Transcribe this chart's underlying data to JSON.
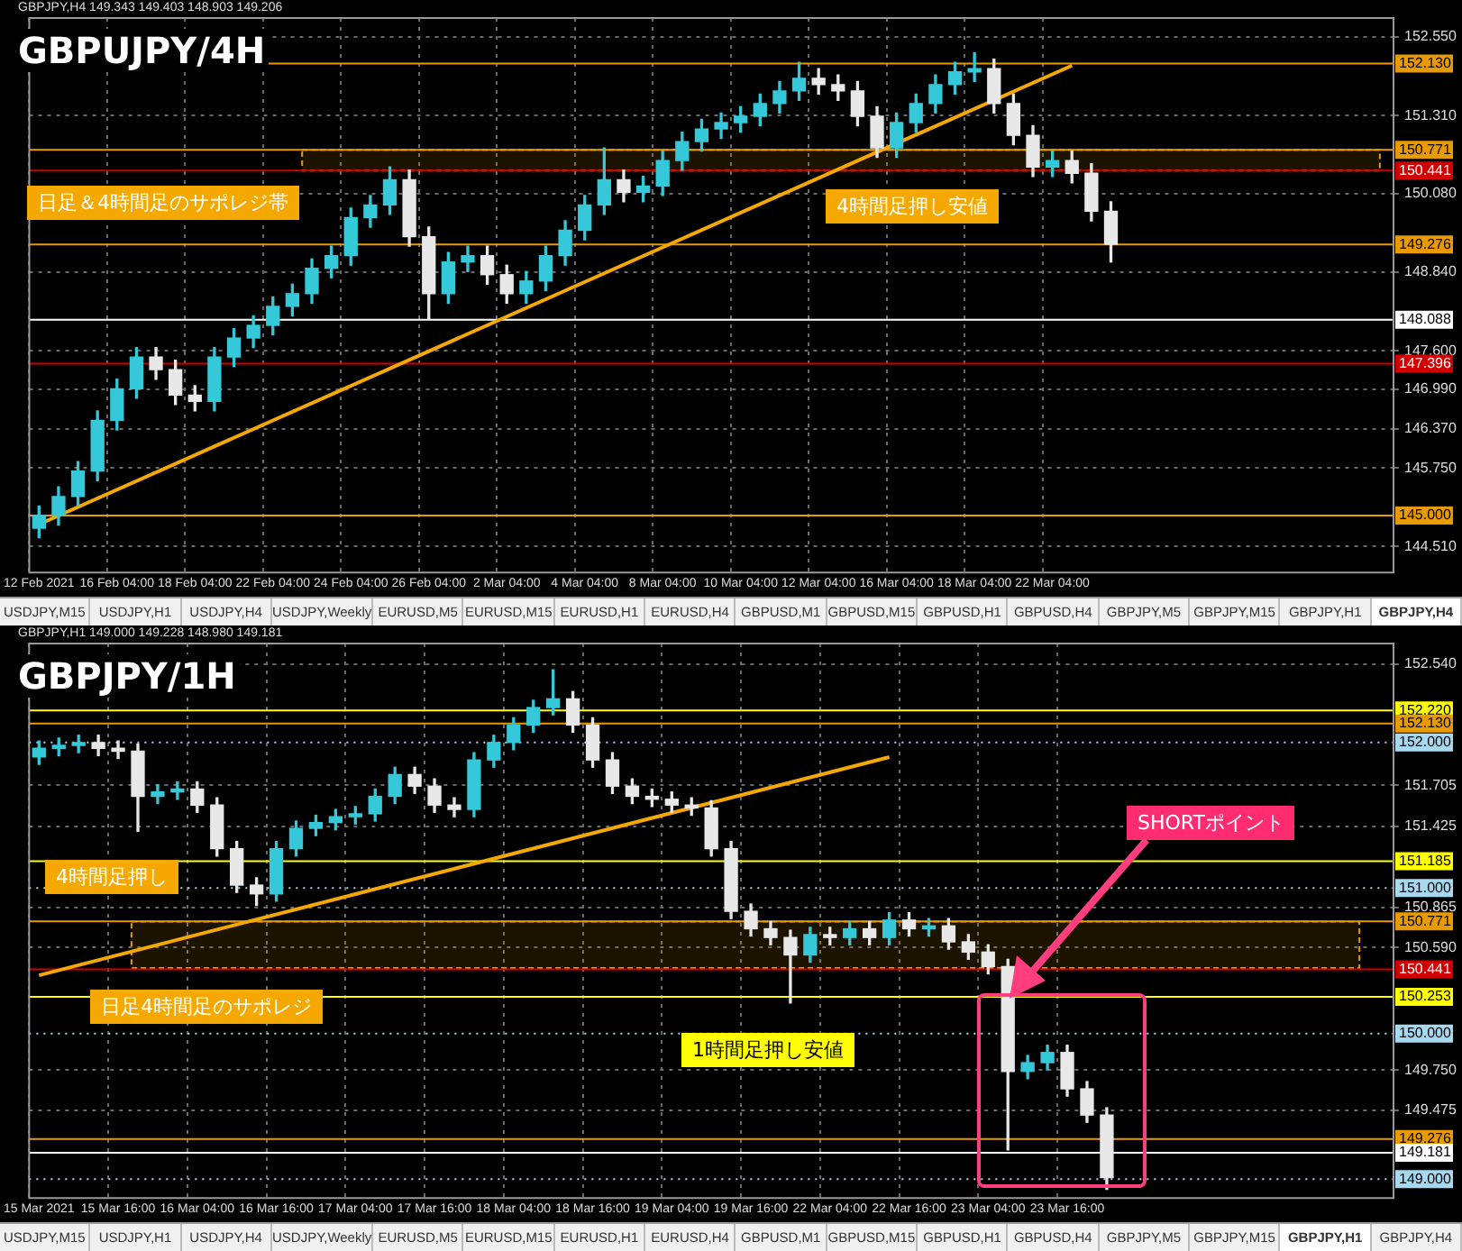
{
  "chart_data": [
    {
      "type": "candlestick",
      "title": "GBPUJPY/4H",
      "subtitle": "GBPJPY,H4  149.343 149.403 148.903 149.206",
      "categories": [
        "12 Feb 2021",
        null,
        null,
        null,
        "16 Feb 04:00",
        null,
        null,
        null,
        "18 Feb 04:00",
        null,
        null,
        null,
        "22 Feb 04:00",
        null,
        null,
        null,
        "24 Feb 04:00",
        null,
        null,
        null,
        "26 Feb 04:00",
        null,
        null,
        null,
        "2 Mar 04:00",
        null,
        null,
        null,
        "4 Mar 04:00",
        null,
        null,
        null,
        "8 Mar 04:00",
        null,
        null,
        null,
        "10 Mar 04:00",
        null,
        null,
        null,
        "12 Mar 04:00",
        null,
        null,
        null,
        "16 Mar 04:00",
        null,
        null,
        null,
        "18 Mar 04:00",
        null,
        null,
        null,
        "22 Mar 04:00",
        null,
        null,
        null,
        null,
        null,
        null,
        null,
        null,
        null,
        null,
        null,
        null,
        null,
        null,
        null,
        null,
        null
      ],
      "ohlc": [
        [
          144.8,
          145.15,
          144.65,
          145.0
        ],
        [
          145.0,
          145.45,
          144.85,
          145.3
        ],
        [
          145.3,
          145.85,
          145.15,
          145.7
        ],
        [
          145.7,
          146.65,
          145.55,
          146.5
        ],
        [
          146.5,
          147.15,
          146.35,
          147.0
        ],
        [
          147.0,
          147.65,
          146.85,
          147.5
        ],
        [
          147.5,
          147.65,
          147.15,
          147.3
        ],
        [
          147.3,
          147.45,
          146.75,
          146.9
        ],
        [
          146.9,
          147.05,
          146.65,
          146.8
        ],
        [
          146.8,
          147.65,
          146.65,
          147.5
        ],
        [
          147.5,
          147.95,
          147.35,
          147.8
        ],
        [
          147.8,
          148.15,
          147.65,
          148.0
        ],
        [
          148.0,
          148.45,
          147.85,
          148.3
        ],
        [
          148.3,
          148.65,
          148.15,
          148.5
        ],
        [
          148.5,
          149.05,
          148.35,
          148.9
        ],
        [
          148.9,
          149.25,
          148.75,
          149.1
        ],
        [
          149.1,
          149.85,
          148.95,
          149.7
        ],
        [
          149.7,
          150.05,
          149.55,
          149.9
        ],
        [
          149.9,
          150.5,
          149.75,
          150.3
        ],
        [
          150.3,
          150.45,
          149.25,
          149.4
        ],
        [
          149.4,
          149.55,
          148.1,
          148.5
        ],
        [
          148.5,
          149.15,
          148.35,
          149.0
        ],
        [
          149.0,
          149.25,
          148.85,
          149.1
        ],
        [
          149.1,
          149.25,
          148.65,
          148.8
        ],
        [
          148.8,
          148.95,
          148.35,
          148.5
        ],
        [
          148.5,
          148.85,
          148.35,
          148.7
        ],
        [
          148.7,
          149.25,
          148.55,
          149.1
        ],
        [
          149.1,
          149.65,
          148.95,
          149.5
        ],
        [
          149.5,
          150.05,
          149.35,
          149.9
        ],
        [
          149.9,
          150.8,
          149.75,
          150.3
        ],
        [
          150.3,
          150.45,
          149.95,
          150.1
        ],
        [
          150.1,
          150.35,
          149.95,
          150.2
        ],
        [
          150.2,
          150.75,
          150.05,
          150.6
        ],
        [
          150.6,
          151.05,
          150.45,
          150.9
        ],
        [
          150.9,
          151.25,
          150.75,
          151.1
        ],
        [
          151.1,
          151.35,
          150.95,
          151.2
        ],
        [
          151.2,
          151.45,
          151.05,
          151.3
        ],
        [
          151.3,
          151.65,
          151.15,
          151.5
        ],
        [
          151.5,
          151.85,
          151.35,
          151.7
        ],
        [
          151.7,
          152.15,
          151.55,
          151.9
        ],
        [
          151.9,
          152.05,
          151.65,
          151.8
        ],
        [
          151.8,
          151.95,
          151.55,
          151.7
        ],
        [
          151.7,
          151.85,
          151.15,
          151.3
        ],
        [
          151.3,
          151.45,
          150.65,
          150.8
        ],
        [
          150.8,
          151.35,
          150.65,
          151.2
        ],
        [
          151.2,
          151.65,
          151.05,
          151.5
        ],
        [
          151.5,
          151.95,
          151.35,
          151.8
        ],
        [
          151.8,
          152.15,
          151.65,
          152.0
        ],
        [
          152.0,
          152.3,
          151.85,
          152.05
        ],
        [
          152.05,
          152.2,
          151.35,
          151.5
        ],
        [
          151.5,
          151.65,
          150.85,
          151.0
        ],
        [
          151.0,
          151.15,
          150.35,
          150.5
        ],
        [
          150.5,
          150.75,
          150.35,
          150.6
        ],
        [
          150.6,
          150.75,
          150.25,
          150.4
        ],
        [
          150.4,
          150.55,
          149.65,
          149.8
        ],
        [
          149.8,
          149.95,
          149.0,
          149.28
        ],
        null,
        null,
        null,
        null,
        null,
        null,
        null,
        null,
        null,
        null,
        null,
        null,
        null,
        null
      ],
      "colors": [
        "#35c8d8",
        "#35c8d8",
        "#35c8d8",
        "#35c8d8",
        "#35c8d8",
        "#35c8d8",
        "#e8e8e8",
        "#e8e8e8",
        "#e8e8e8",
        "#35c8d8",
        "#35c8d8",
        "#35c8d8",
        "#35c8d8",
        "#35c8d8",
        "#35c8d8",
        "#35c8d8",
        "#35c8d8",
        "#35c8d8",
        "#35c8d8",
        "#e8e8e8",
        "#e8e8e8",
        "#35c8d8",
        "#35c8d8",
        "#e8e8e8",
        "#e8e8e8",
        "#35c8d8",
        "#35c8d8",
        "#35c8d8",
        "#35c8d8",
        "#35c8d8",
        "#e8e8e8",
        "#35c8d8",
        "#35c8d8",
        "#35c8d8",
        "#35c8d8",
        "#35c8d8",
        "#35c8d8",
        "#35c8d8",
        "#35c8d8",
        "#35c8d8",
        "#e8e8e8",
        "#e8e8e8",
        "#e8e8e8",
        "#e8e8e8",
        "#35c8d8",
        "#35c8d8",
        "#35c8d8",
        "#35c8d8",
        "#35c8d8",
        "#e8e8e8",
        "#e8e8e8",
        "#e8e8e8",
        "#35c8d8",
        "#e8e8e8",
        "#e8e8e8",
        "#e8e8e8",
        null,
        null,
        null,
        null,
        null,
        null,
        null,
        null,
        null,
        null,
        null,
        null,
        null,
        null
      ],
      "series": [
        {
          "type": "line",
          "color": "#f5a800",
          "values": [
            144.86,
            null,
            null,
            null,
            null,
            null,
            null,
            null,
            null,
            null,
            null,
            null,
            null,
            null,
            null,
            null,
            null,
            null,
            null,
            null,
            null,
            null,
            null,
            null,
            null,
            null,
            null,
            null,
            null,
            null,
            null,
            null,
            null,
            null,
            null,
            null,
            null,
            null,
            null,
            null,
            null,
            null,
            null,
            null,
            null,
            null,
            null,
            null,
            null,
            null,
            null,
            null,
            null,
            152.1,
            null,
            null,
            null,
            null,
            null,
            null,
            null,
            null,
            null,
            null,
            null,
            null,
            null,
            null,
            null,
            null
          ]
        }
      ],
      "ylim": [
        144.1,
        152.85
      ],
      "yticks": [
        {
          "value": 144.51,
          "label": "144.510"
        },
        {
          "value": 145.75,
          "label": "145.750"
        },
        {
          "value": 146.37,
          "label": "146.370"
        },
        {
          "value": 146.99,
          "label": "146.990"
        },
        {
          "value": 147.6,
          "label": "147.600"
        },
        {
          "value": 148.84,
          "label": "148.840"
        },
        {
          "value": 150.08,
          "label": "150.080"
        },
        {
          "value": 151.31,
          "label": "151.310"
        },
        {
          "value": 152.55,
          "label": "152.550"
        }
      ],
      "ref_lines": [
        {
          "axis": "y",
          "value": 152.13,
          "label": "152.130",
          "color": "#e89a00"
        },
        {
          "axis": "y",
          "value": 150.771,
          "label": "150.771",
          "color": "#e89a00"
        },
        {
          "axis": "y",
          "value": 150.441,
          "label": "150.441",
          "color": "#d00000"
        },
        {
          "axis": "y",
          "value": 149.276,
          "label": "149.276",
          "color": "#e89a00"
        },
        {
          "axis": "y",
          "value": 148.088,
          "label": "148.088",
          "color": "#ffffff"
        },
        {
          "axis": "y",
          "value": 147.396,
          "label": "147.396",
          "color": "#d00000"
        },
        {
          "axis": "y",
          "value": 145.0,
          "label": "145.000",
          "color": "#e89a00"
        }
      ],
      "bands": [
        {
          "axis": "y",
          "from": 150.441,
          "to": 150.771,
          "color": "#e89a00"
        }
      ],
      "annotations": [
        "日足＆4時間足のサポレジ帯",
        "4時間足押し安値",
        "USDJPY,M15",
        "USDJPY,H1",
        "USDJPY,H4",
        "USDJPY,Weekly",
        "EURUSD,M5",
        "EURUSD,M15",
        "EURUSD,H1",
        "EURUSD,H4",
        "GBPUSD,M1",
        "GBPUSD,M15",
        "GBPUSD,H1",
        "GBPUSD,H4",
        "GBPJPY,M5",
        "GBPJPY,M15",
        "GBPJPY,H1",
        "GBPJPY,H4"
      ],
      "grid": true,
      "legend": false
    },
    {
      "type": "candlestick",
      "title": "GBPJPY/1H",
      "subtitle": "GBPJPY,H1  149.000 149.228 148.980 149.181",
      "categories": [
        "15 Mar 2021",
        null,
        null,
        null,
        "15 Mar 16:00",
        null,
        null,
        null,
        "16 Mar 04:00",
        null,
        null,
        null,
        "16 Mar 16:00",
        null,
        null,
        null,
        "17 Mar 04:00",
        null,
        null,
        null,
        "17 Mar 16:00",
        null,
        null,
        null,
        "18 Mar 04:00",
        null,
        null,
        null,
        "18 Mar 16:00",
        null,
        null,
        null,
        "19 Mar 04:00",
        null,
        null,
        null,
        "19 Mar 16:00",
        null,
        null,
        null,
        "22 Mar 04:00",
        null,
        null,
        null,
        "22 Mar 16:00",
        null,
        null,
        null,
        "23 Mar 04:00",
        null,
        null,
        null,
        "23 Mar 16:00",
        null,
        null,
        null,
        null,
        null,
        null,
        null,
        null,
        null,
        null,
        null,
        null,
        null,
        null,
        null,
        null
      ],
      "ohlc": [
        [
          151.9,
          152.01,
          151.85,
          151.96
        ],
        [
          151.96,
          152.03,
          151.91,
          151.98
        ],
        [
          151.98,
          152.05,
          151.93,
          152.0
        ],
        [
          152.0,
          152.05,
          151.91,
          151.96
        ],
        [
          151.96,
          152.01,
          151.89,
          151.94
        ],
        [
          151.94,
          151.99,
          151.39,
          151.63
        ],
        [
          151.63,
          151.71,
          151.58,
          151.66
        ],
        [
          151.66,
          151.73,
          151.61,
          151.68
        ],
        [
          151.68,
          151.73,
          151.52,
          151.57
        ],
        [
          151.57,
          151.62,
          151.22,
          151.27
        ],
        [
          151.27,
          151.32,
          150.97,
          151.02
        ],
        [
          151.02,
          151.07,
          150.88,
          150.96
        ],
        [
          150.96,
          151.32,
          150.91,
          151.27
        ],
        [
          151.27,
          151.46,
          151.22,
          151.41
        ],
        [
          151.41,
          151.5,
          151.36,
          151.45
        ],
        [
          151.45,
          151.54,
          151.4,
          151.49
        ],
        [
          151.49,
          151.56,
          151.44,
          151.51
        ],
        [
          151.51,
          151.68,
          151.46,
          151.63
        ],
        [
          151.63,
          151.83,
          151.58,
          151.78
        ],
        [
          151.78,
          151.83,
          151.65,
          151.7
        ],
        [
          151.7,
          151.75,
          151.52,
          151.57
        ],
        [
          151.57,
          151.62,
          151.49,
          151.54
        ],
        [
          151.54,
          151.93,
          151.49,
          151.88
        ],
        [
          151.88,
          152.05,
          151.83,
          152.0
        ],
        [
          152.0,
          152.17,
          151.95,
          152.12
        ],
        [
          152.12,
          152.29,
          152.07,
          152.24
        ],
        [
          152.24,
          152.5,
          152.19,
          152.3
        ],
        [
          152.3,
          152.35,
          152.07,
          152.12
        ],
        [
          152.12,
          152.17,
          151.83,
          151.88
        ],
        [
          151.88,
          151.93,
          151.65,
          151.7
        ],
        [
          151.7,
          151.75,
          151.58,
          151.63
        ],
        [
          151.63,
          151.68,
          151.56,
          151.61
        ],
        [
          151.61,
          151.66,
          151.52,
          151.57
        ],
        [
          151.57,
          151.62,
          151.5,
          151.55
        ],
        [
          151.55,
          151.6,
          151.22,
          151.27
        ],
        [
          151.27,
          151.32,
          150.79,
          150.84
        ],
        [
          150.84,
          150.89,
          150.67,
          150.72
        ],
        [
          150.72,
          150.77,
          150.61,
          150.66
        ],
        [
          150.66,
          150.71,
          150.21,
          150.54
        ],
        [
          150.54,
          150.73,
          150.49,
          150.68
        ],
        [
          150.68,
          150.73,
          150.61,
          150.66
        ],
        [
          150.66,
          150.77,
          150.61,
          150.72
        ],
        [
          150.72,
          150.77,
          150.61,
          150.66
        ],
        [
          150.66,
          150.83,
          150.61,
          150.78
        ],
        [
          150.78,
          150.83,
          150.67,
          150.72
        ],
        [
          150.72,
          150.79,
          150.67,
          150.74
        ],
        [
          150.74,
          150.79,
          150.58,
          150.63
        ],
        [
          150.63,
          150.68,
          150.51,
          150.56
        ],
        [
          150.56,
          150.61,
          150.41,
          150.46
        ],
        [
          150.46,
          150.51,
          149.2,
          149.74
        ],
        [
          149.74,
          149.85,
          149.69,
          149.8
        ],
        [
          149.8,
          149.92,
          149.75,
          149.87
        ],
        [
          149.87,
          149.92,
          149.57,
          149.62
        ],
        [
          149.62,
          149.67,
          149.39,
          149.44
        ],
        [
          149.44,
          149.49,
          148.93,
          149.01
        ],
        null,
        null,
        null,
        null,
        null,
        null,
        null,
        null,
        null,
        null,
        null,
        null,
        null,
        null
      ],
      "colors": [
        "#35c8d8",
        "#35c8d8",
        "#35c8d8",
        "#e8e8e8",
        "#e8e8e8",
        "#e8e8e8",
        "#35c8d8",
        "#35c8d8",
        "#e8e8e8",
        "#e8e8e8",
        "#e8e8e8",
        "#e8e8e8",
        "#35c8d8",
        "#35c8d8",
        "#35c8d8",
        "#35c8d8",
        "#35c8d8",
        "#35c8d8",
        "#35c8d8",
        "#e8e8e8",
        "#e8e8e8",
        "#e8e8e8",
        "#35c8d8",
        "#35c8d8",
        "#35c8d8",
        "#35c8d8",
        "#35c8d8",
        "#e8e8e8",
        "#e8e8e8",
        "#e8e8e8",
        "#e8e8e8",
        "#e8e8e8",
        "#e8e8e8",
        "#e8e8e8",
        "#e8e8e8",
        "#e8e8e8",
        "#e8e8e8",
        "#e8e8e8",
        "#e8e8e8",
        "#35c8d8",
        "#e8e8e8",
        "#35c8d8",
        "#e8e8e8",
        "#35c8d8",
        "#e8e8e8",
        "#35c8d8",
        "#e8e8e8",
        "#e8e8e8",
        "#e8e8e8",
        "#e8e8e8",
        "#35c8d8",
        "#35c8d8",
        "#e8e8e8",
        "#e8e8e8",
        "#e8e8e8",
        null,
        null,
        null,
        null,
        null,
        null,
        null,
        null,
        null,
        null,
        null,
        null,
        null,
        null
      ],
      "series": [
        {
          "type": "line",
          "color": "#f5a800",
          "values": [
            150.4,
            null,
            null,
            null,
            null,
            null,
            null,
            null,
            null,
            null,
            null,
            null,
            null,
            null,
            null,
            null,
            null,
            null,
            null,
            null,
            null,
            null,
            null,
            null,
            null,
            null,
            null,
            null,
            null,
            null,
            null,
            null,
            null,
            null,
            null,
            null,
            null,
            null,
            null,
            null,
            null,
            null,
            null,
            151.9,
            null,
            null,
            null,
            null,
            null,
            null,
            null,
            null,
            null,
            null,
            null,
            null,
            null,
            null,
            null,
            null,
            null,
            null,
            null,
            null,
            null,
            null,
            null,
            null,
            null
          ]
        }
      ],
      "ylim": [
        148.87,
        152.68
      ],
      "yticks": [
        {
          "value": 149.475,
          "label": "149.475"
        },
        {
          "value": 149.75,
          "label": "149.750"
        },
        {
          "value": 150.59,
          "label": "150.590"
        },
        {
          "value": 150.865,
          "label": "150.865"
        },
        {
          "value": 151.425,
          "label": "151.425"
        },
        {
          "value": 151.705,
          "label": "151.705"
        },
        {
          "value": 152.54,
          "label": "152.540"
        }
      ],
      "ref_lines": [
        {
          "axis": "y",
          "value": 152.22,
          "label": "152.220",
          "color": "#ffff00"
        },
        {
          "axis": "y",
          "value": 152.13,
          "label": "152.130",
          "color": "#e89a00"
        },
        {
          "axis": "y",
          "value": 152.0,
          "label": "152.000",
          "color": "#a6d8f0",
          "line_style": "dotted"
        },
        {
          "axis": "y",
          "value": 151.185,
          "label": "151.185",
          "color": "#ffff00"
        },
        {
          "axis": "y",
          "value": 151.0,
          "label": "151.000",
          "color": "#a6d8f0",
          "line_style": "dotted"
        },
        {
          "axis": "y",
          "value": 150.771,
          "label": "150.771",
          "color": "#e89a00"
        },
        {
          "axis": "y",
          "value": 150.441,
          "label": "150.441",
          "color": "#d00000"
        },
        {
          "axis": "y",
          "value": 150.253,
          "label": "150.253",
          "color": "#ffff00"
        },
        {
          "axis": "y",
          "value": 150.0,
          "label": "150.000",
          "color": "#a6d8f0",
          "line_style": "dotted"
        },
        {
          "axis": "y",
          "value": 149.276,
          "label": "149.276",
          "color": "#e89a00"
        },
        {
          "axis": "y",
          "value": 149.181,
          "label": "149.181",
          "color": "#ffffff"
        },
        {
          "axis": "y",
          "value": 149.0,
          "label": "149.000",
          "color": "#a6d8f0",
          "line_style": "dotted"
        }
      ],
      "bands": [
        {
          "axis": "y",
          "from": 150.45,
          "to": 150.77,
          "color": "#e89a00"
        }
      ],
      "annotations": [
        "4時間足押し",
        "日足4時間足のサポレジ",
        "1時間足押し安値",
        "SHORTポイント",
        "USDJPY,M15",
        "USDJPY,H1",
        "USDJPY,H4",
        "USDJPY,Weekly",
        "EURUSD,M5",
        "EURUSD,M15",
        "EURUSD,H1",
        "EURUSD,H4",
        "GBPUSD,M1",
        "GBPUSD,M15",
        "GBPUSD,H1",
        "GBPUSD,H4",
        "GBPJPY,M5",
        "GBPJPY,M15",
        "GBPJPY,H1",
        "GBPJPY,H4"
      ],
      "grid": true,
      "legend": false
    }
  ]
}
